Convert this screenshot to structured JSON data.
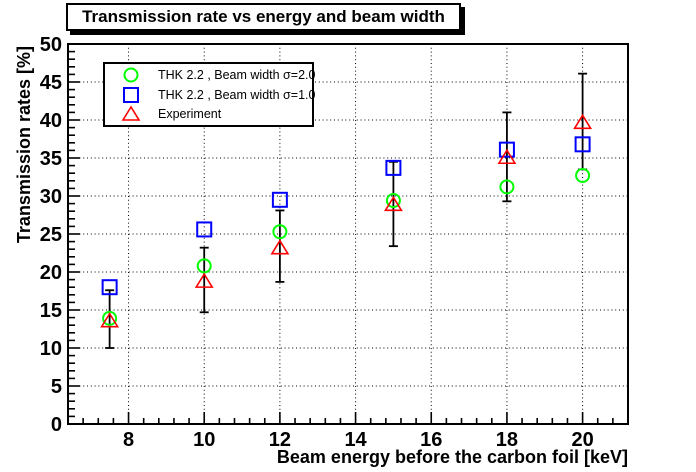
{
  "chart_data": {
    "type": "scatter",
    "title": "Transmission rate vs energy and beam width",
    "xlabel": "Beam energy before the carbon foil [keV]",
    "ylabel": "Transmission rates [%]",
    "xlim": [
      6.4,
      21.2
    ],
    "ylim": [
      0,
      50
    ],
    "x_major_ticks": [
      8,
      10,
      12,
      14,
      16,
      18,
      20
    ],
    "x_minor_step": 0.4,
    "y_major_step": 5,
    "y_minor_step": 1,
    "grid": {
      "style": "dotted",
      "on_major_ticks": true,
      "color": "#000000"
    },
    "legend": {
      "position": "top-left"
    },
    "frame_color": "#000000",
    "background_color": "#ffffff",
    "series": [
      {
        "name": "THK 2.2 , Beam width σ=2.0",
        "marker": "circle",
        "color": "#00ff00",
        "x": [
          7.5,
          10,
          12,
          15,
          18,
          20
        ],
        "y": [
          13.9,
          20.8,
          25.3,
          29.4,
          31.2,
          32.7
        ]
      },
      {
        "name": "THK 2.2 , Beam width σ=1.0",
        "marker": "square",
        "color": "#0000ff",
        "x": [
          7.5,
          10,
          12,
          15,
          18,
          20
        ],
        "y": [
          18.0,
          25.6,
          29.5,
          33.7,
          36.1,
          36.8
        ]
      },
      {
        "name": "Experiment",
        "marker": "triangle",
        "color": "#ff0000",
        "error_bar_color": "#000000",
        "x": [
          7.5,
          10,
          12,
          15,
          18,
          20
        ],
        "y": [
          13.6,
          18.8,
          23.2,
          28.9,
          35.1,
          39.7
        ],
        "y_err_low": [
          10.0,
          14.7,
          18.7,
          23.4,
          29.3,
          33.5
        ],
        "y_err_high": [
          17.6,
          23.2,
          28.1,
          34.5,
          41.0,
          46.1
        ]
      }
    ]
  }
}
